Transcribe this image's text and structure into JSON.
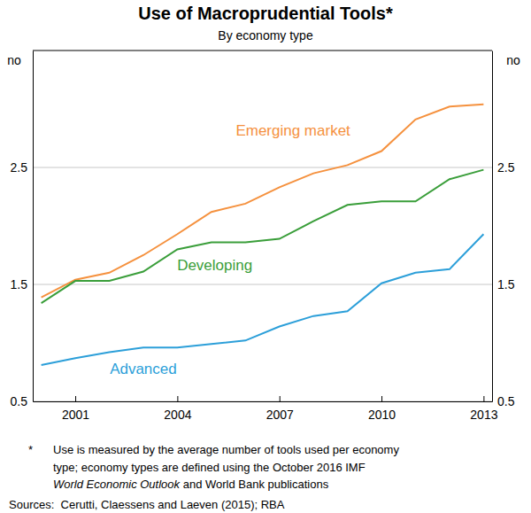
{
  "chart_data": {
    "type": "line",
    "title": "Use of Macroprudential Tools*",
    "subtitle": "By economy type",
    "y_label": "no",
    "x": [
      2000,
      2001,
      2002,
      2003,
      2004,
      2005,
      2006,
      2007,
      2008,
      2009,
      2010,
      2011,
      2012,
      2013
    ],
    "xlim": [
      1999.75,
      2013.25
    ],
    "xticks": [
      2001,
      2004,
      2007,
      2010,
      2013
    ],
    "ylim": [
      0.5,
      3.5
    ],
    "yticks": [
      0.5,
      1.5,
      2.5
    ],
    "grid": true,
    "series": [
      {
        "name": "Emerging market",
        "color": "#f5913e",
        "values": [
          1.39,
          1.54,
          1.6,
          1.75,
          1.93,
          2.12,
          2.19,
          2.33,
          2.45,
          2.52,
          2.64,
          2.91,
          3.02,
          3.04
        ]
      },
      {
        "name": "Developing",
        "color": "#3a9e3a",
        "values": [
          1.34,
          1.53,
          1.53,
          1.61,
          1.8,
          1.86,
          1.86,
          1.89,
          2.04,
          2.18,
          2.21,
          2.21,
          2.4,
          2.48
        ]
      },
      {
        "name": "Advanced",
        "color": "#2c9fd9",
        "values": [
          0.81,
          0.87,
          0.92,
          0.96,
          0.96,
          0.99,
          1.02,
          1.14,
          1.23,
          1.27,
          1.51,
          1.6,
          1.63,
          1.93
        ]
      }
    ],
    "footnote_marker": "*",
    "footnote": [
      "Use is measured by the average number of tools used per economy",
      "type; economy types are defined using the October 2016 IMF",
      [
        "World Economic Outlook",
        " and World Bank publications"
      ]
    ],
    "sources": "Sources:  Cerutti, Claessens and Laeven (2015); RBA"
  }
}
